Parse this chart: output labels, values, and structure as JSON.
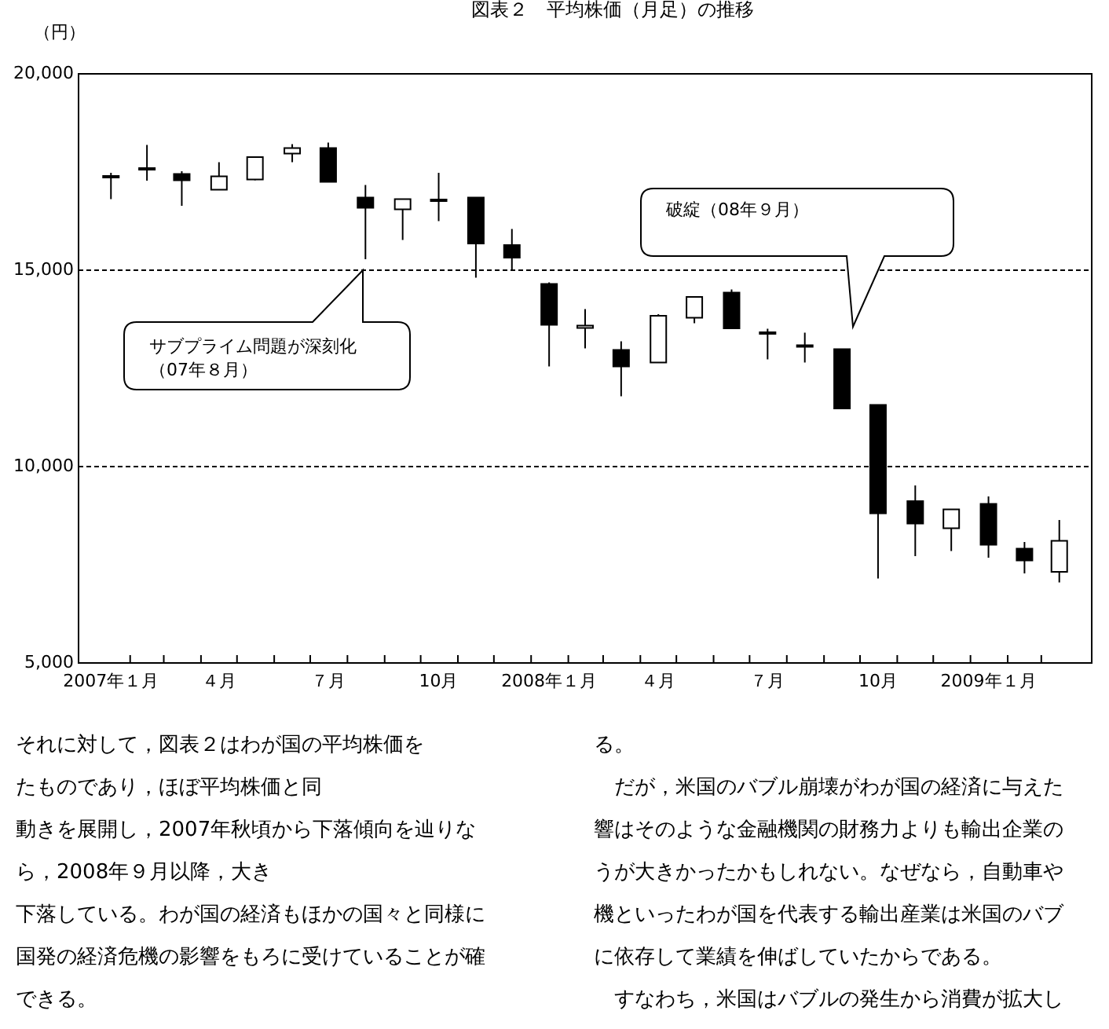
{
  "chart_data": {
    "type": "candlestick",
    "title": "図表２　平均株価（月足）の推移",
    "ylabel": "（円）",
    "x": [
      "2007-01-16",
      "2007-02-15",
      "2007-03-16",
      "2007-04-16",
      "2007-05-16",
      "2007-06-16",
      "2007-07-16",
      "2007-08-16",
      "2007-09-16",
      "2007-10-16",
      "2007-11-16",
      "2007-12-16",
      "2008-01-16",
      "2008-02-15",
      "2008-03-16",
      "2008-04-16",
      "2008-05-16",
      "2008-06-16",
      "2008-07-16",
      "2008-08-16",
      "2008-09-16",
      "2008-10-16",
      "2008-11-16",
      "2008-12-16",
      "2009-01-16",
      "2009-02-15",
      "2009-03-16"
    ],
    "ohlc": [
      [
        17380,
        17480,
        16810,
        17400
      ],
      [
        17580,
        18190,
        17280,
        17600
      ],
      [
        17450,
        17520,
        16640,
        17290
      ],
      [
        17050,
        17750,
        17050,
        17390
      ],
      [
        17310,
        17900,
        17290,
        17880
      ],
      [
        17970,
        18210,
        17750,
        18110
      ],
      [
        18110,
        18250,
        17250,
        17250
      ],
      [
        16850,
        17170,
        15280,
        16590
      ],
      [
        16550,
        16810,
        15770,
        16810
      ],
      [
        16790,
        17480,
        16250,
        16800
      ],
      [
        16850,
        16850,
        14810,
        15680
      ],
      [
        15640,
        16050,
        15010,
        15320
      ],
      [
        14650,
        14690,
        12550,
        13610
      ],
      [
        13530,
        14010,
        13010,
        13590
      ],
      [
        12970,
        13190,
        11790,
        12550
      ],
      [
        12650,
        13880,
        12650,
        13840
      ],
      [
        13790,
        14320,
        13650,
        14320
      ],
      [
        14430,
        14510,
        13520,
        13520
      ],
      [
        13400,
        13510,
        12730,
        13420
      ],
      [
        13070,
        13410,
        12650,
        13090
      ],
      [
        12990,
        12990,
        11480,
        11480
      ],
      [
        11570,
        11570,
        7150,
        8810
      ],
      [
        9120,
        9520,
        7720,
        8550
      ],
      [
        8430,
        8910,
        7850,
        8910
      ],
      [
        9050,
        9240,
        7680,
        8010
      ],
      [
        7910,
        8080,
        7280,
        7610
      ],
      [
        7320,
        8640,
        7050,
        8110
      ]
    ],
    "xlim": [
      "2006-12-20",
      "2009-04-12"
    ],
    "xticks": [
      {
        "value": "2007-01-16",
        "label": "2007年１月"
      },
      {
        "value": "2007-04-16",
        "label": "４月"
      },
      {
        "value": "2007-07-16",
        "label": "７月"
      },
      {
        "value": "2007-10-16",
        "label": "10月"
      },
      {
        "value": "2008-01-16",
        "label": "2008年１月"
      },
      {
        "value": "2008-04-16",
        "label": "４月"
      },
      {
        "value": "2008-07-16",
        "label": "７月"
      },
      {
        "value": "2008-10-16",
        "label": "10月"
      },
      {
        "value": "2009-01-16",
        "label": "2009年１月"
      },
      {
        "value": "2007-02-01",
        "label": null
      },
      {
        "value": "2007-03-01",
        "label": null
      },
      {
        "value": "2007-04-01",
        "label": null
      },
      {
        "value": "2007-05-01",
        "label": null
      },
      {
        "value": "2007-06-01",
        "label": null
      },
      {
        "value": "2007-07-01",
        "label": null
      },
      {
        "value": "2007-08-01",
        "label": null
      },
      {
        "value": "2007-09-01",
        "label": null
      },
      {
        "value": "2007-10-01",
        "label": null
      },
      {
        "value": "2007-11-01",
        "label": null
      },
      {
        "value": "2007-12-01",
        "label": null
      },
      {
        "value": "2008-01-01",
        "label": null
      },
      {
        "value": "2008-02-01",
        "label": null
      },
      {
        "value": "2008-03-01",
        "label": null
      },
      {
        "value": "2008-04-01",
        "label": null
      },
      {
        "value": "2008-05-01",
        "label": null
      },
      {
        "value": "2008-06-01",
        "label": null
      },
      {
        "value": "2008-07-01",
        "label": null
      },
      {
        "value": "2008-08-01",
        "label": null
      },
      {
        "value": "2008-09-01",
        "label": null
      },
      {
        "value": "2008-10-01",
        "label": null
      },
      {
        "value": "2008-11-01",
        "label": null
      },
      {
        "value": "2008-12-01",
        "label": null
      },
      {
        "value": "2009-01-01",
        "label": null
      },
      {
        "value": "2009-02-01",
        "label": null
      },
      {
        "value": "2009-03-01",
        "label": null
      }
    ],
    "ylim": [
      5000,
      20000
    ],
    "yticks": [
      {
        "value": 5000,
        "label": "5,000"
      },
      {
        "value": 10000,
        "label": "10,000"
      },
      {
        "value": 15000,
        "label": "15,000"
      },
      {
        "value": 20000,
        "label": "20,000"
      }
    ],
    "grid": "y",
    "annotations": [
      "サブプライム問題が深刻化",
      "（07年８月）",
      "破綻（08年９月）",
      "それに対して，図表２はわが国の平均株価を",
      "たものであり，ほぼ平均株価と同",
      "動きを展開し，2007年秋頃から下落傾向を辿りな",
      "ら，2008年９月以降，大き",
      "下落している。わが国の経済もほかの国々と同様に",
      "国発の経済危機の影響をもろに受けていることが確",
      "できる。",
      "る。",
      "　だが，米国のバブル崩壊がわが国の経済に与えた",
      "響はそのような金融機関の財務力よりも輸出企業の",
      "うが大きかったかもしれない。なぜなら，自動車や",
      "機といったわが国を代表する輸出産業は米国のバブ",
      "に依存して業績を伸ばしていたからである。",
      "　すなわち，米国はバブルの発生から消費が拡大し"
    ]
  }
}
